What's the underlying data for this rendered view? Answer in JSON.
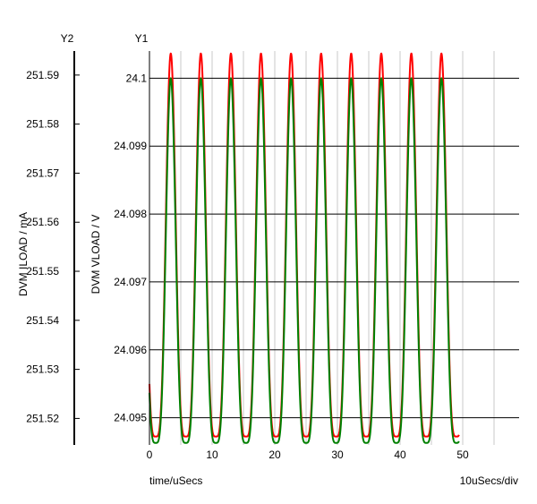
{
  "chart_data": {
    "type": "line",
    "x_axis": {
      "label": "time/uSecs",
      "scale_label": "10uSecs/div",
      "range": [
        0,
        59
      ],
      "ticks": [
        0,
        10,
        20,
        30,
        40,
        50
      ],
      "minor_step": 5
    },
    "y1_axis": {
      "header": "Y1",
      "label": "DVM VLOAD / V",
      "range": [
        24.0946,
        24.1004
      ],
      "ticks": [
        24.095,
        24.096,
        24.097,
        24.098,
        24.099,
        24.1
      ],
      "tick_labels": [
        "24.095",
        "24.096",
        "24.097",
        "24.098",
        "24.099",
        "24.1"
      ]
    },
    "y2_axis": {
      "header": "Y2",
      "label": "DVM ILOAD / mA",
      "range": [
        251.5146,
        251.5949
      ],
      "ticks": [
        251.52,
        251.53,
        251.54,
        251.55,
        251.56,
        251.57,
        251.58,
        251.59
      ],
      "tick_labels": [
        "251.52",
        "251.53",
        "251.54",
        "251.55",
        "251.56",
        "251.57",
        "251.58",
        "251.59"
      ]
    },
    "grid": true,
    "series": [
      {
        "axis": "y2",
        "color": "#ff0000",
        "period": 4.8,
        "peak_offset": 3.4,
        "min": 251.5163,
        "max": 251.5944,
        "x_end": 49.4
      },
      {
        "axis": "y1",
        "color": "#008000",
        "period": 4.8,
        "peak_offset": 3.4,
        "min": 24.09463,
        "max": 24.1,
        "x_end": 49.4
      }
    ]
  }
}
